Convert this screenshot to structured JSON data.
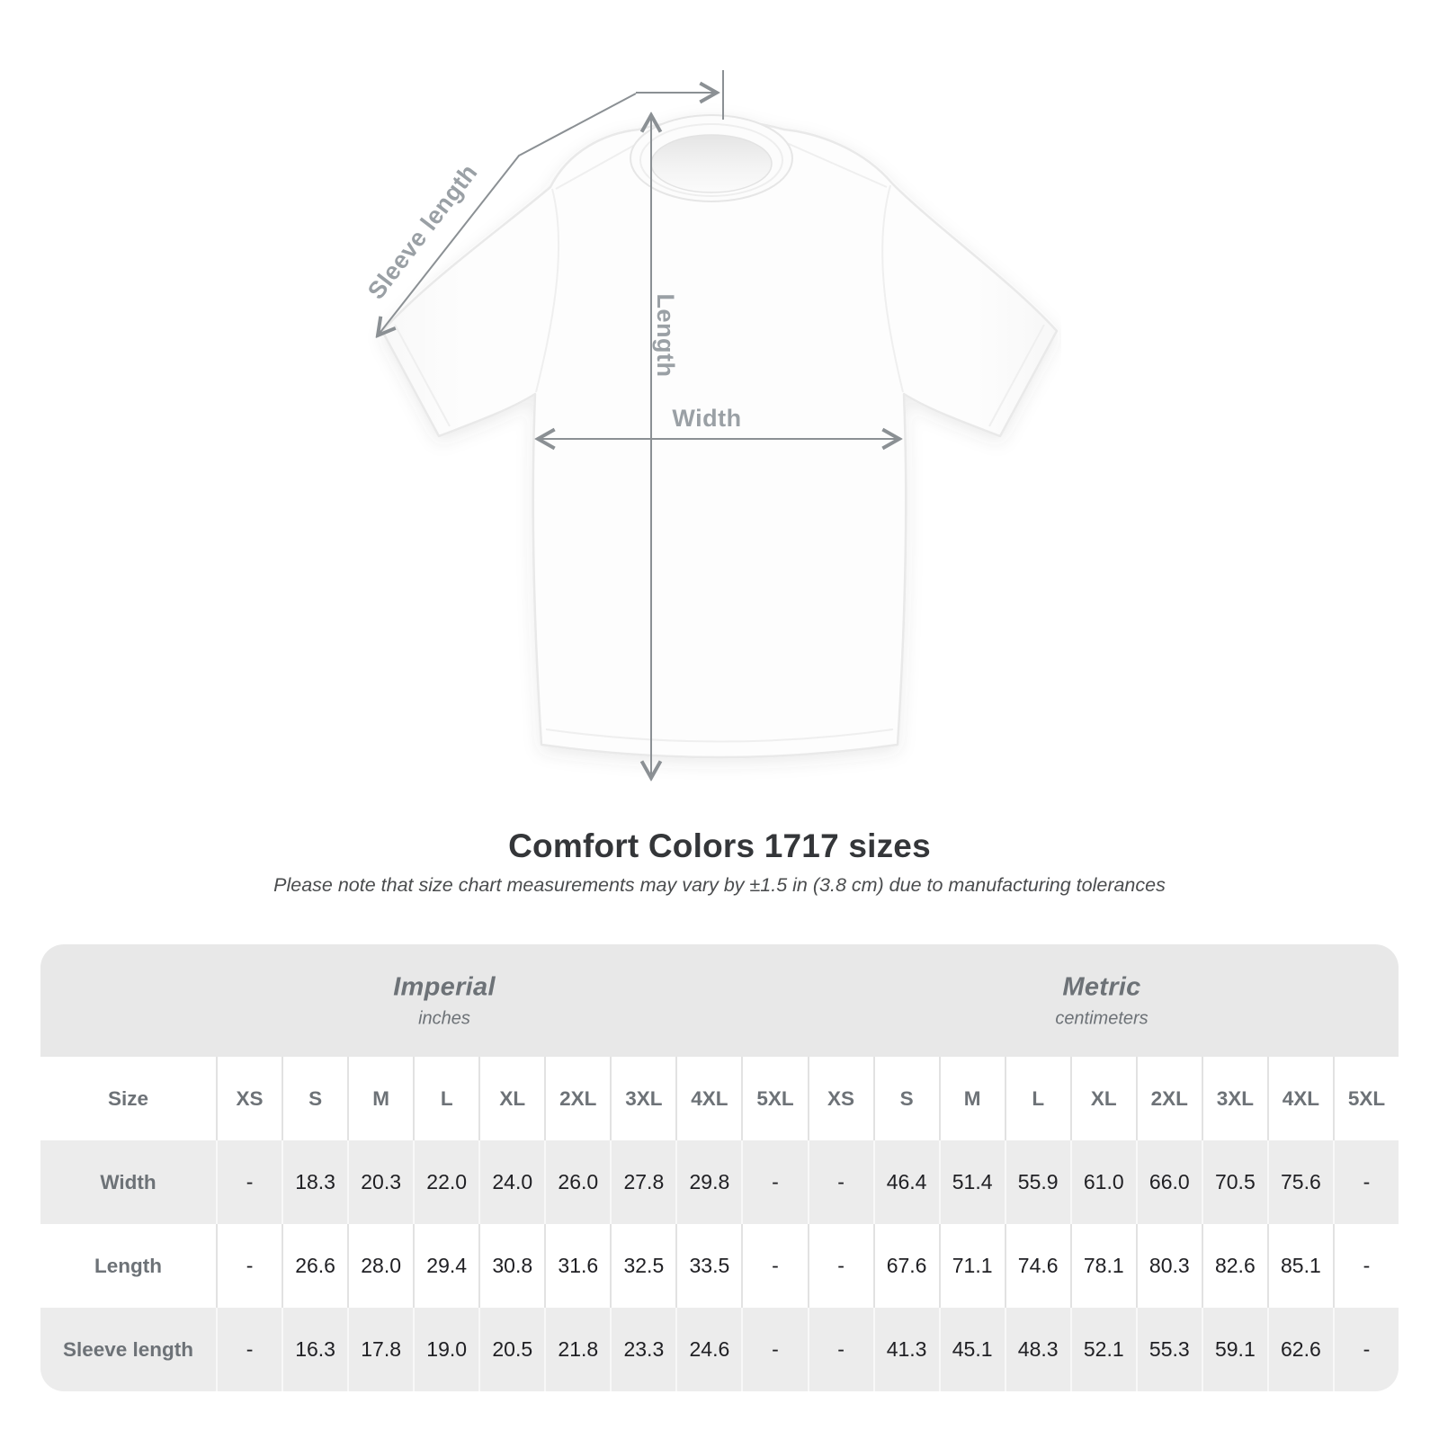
{
  "title": "Comfort Colors 1717 sizes",
  "subtitle": "Please note that size chart measurements may vary by ±1.5 in (3.8 cm) due to manufacturing tolerances",
  "diagram": {
    "labels": {
      "sleeve": "Sleeve length",
      "length": "Length",
      "width": "Width"
    }
  },
  "chart_data": {
    "type": "table",
    "title": "Comfort Colors 1717 sizes",
    "corner_label": "Size",
    "unit_groups": [
      {
        "name": "Imperial",
        "unit": "inches"
      },
      {
        "name": "Metric",
        "unit": "centimeters"
      }
    ],
    "sizes": [
      "XS",
      "S",
      "M",
      "L",
      "XL",
      "2XL",
      "3XL",
      "4XL",
      "5XL"
    ],
    "rows": [
      {
        "label": "Width",
        "imperial": [
          "-",
          "18.3",
          "20.3",
          "22.0",
          "24.0",
          "26.0",
          "27.8",
          "29.8",
          "-"
        ],
        "metric": [
          "-",
          "46.4",
          "51.4",
          "55.9",
          "61.0",
          "66.0",
          "70.5",
          "75.6",
          "-"
        ]
      },
      {
        "label": "Length",
        "imperial": [
          "-",
          "26.6",
          "28.0",
          "29.4",
          "30.8",
          "31.6",
          "32.5",
          "33.5",
          "-"
        ],
        "metric": [
          "-",
          "67.6",
          "71.1",
          "74.6",
          "78.1",
          "80.3",
          "82.6",
          "85.1",
          "-"
        ]
      },
      {
        "label": "Sleeve length",
        "imperial": [
          "-",
          "16.3",
          "17.8",
          "19.0",
          "20.5",
          "21.8",
          "23.3",
          "24.6",
          "-"
        ],
        "metric": [
          "-",
          "41.3",
          "45.1",
          "48.3",
          "52.1",
          "55.3",
          "59.1",
          "62.6",
          "-"
        ]
      }
    ]
  },
  "colors": {
    "band_gray": "#e8e8e8",
    "row_stripe_gray": "#ececec",
    "muted_label": "#6d7277",
    "value_text": "#202024",
    "dimension_line": "#8b9094",
    "dimension_label": "#9aa0a5",
    "title_text": "#343639"
  }
}
